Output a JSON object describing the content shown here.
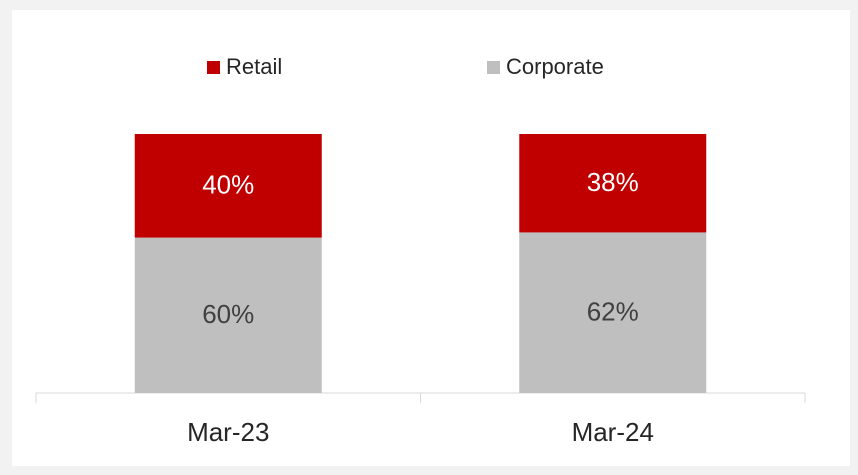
{
  "chart_data": {
    "type": "stacked_bar",
    "categories": [
      "Mar-23",
      "Mar-24"
    ],
    "series": [
      {
        "name": "Retail",
        "color": "#c00000",
        "values": [
          40,
          38
        ],
        "value_labels": [
          "40%",
          "38%"
        ]
      },
      {
        "name": "Corporate",
        "color": "#bfbfbf",
        "values": [
          60,
          62
        ],
        "value_labels": [
          "60%",
          "62%"
        ]
      }
    ],
    "ylim": [
      0,
      100
    ],
    "legend": "top"
  }
}
